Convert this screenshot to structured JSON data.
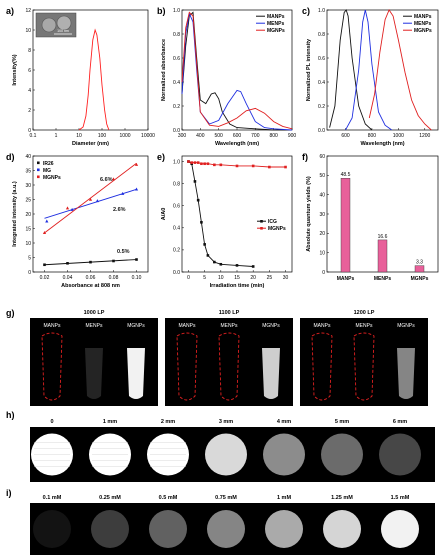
{
  "panels": {
    "a": {
      "label": "a)"
    },
    "b": {
      "label": "b)"
    },
    "c": {
      "label": "c)"
    },
    "d": {
      "label": "d)"
    },
    "e": {
      "label": "e)"
    },
    "f": {
      "label": "f)"
    },
    "g": {
      "label": "g)"
    },
    "h": {
      "label": "h)"
    },
    "i": {
      "label": "i)"
    }
  },
  "inset_scale": "100 nm",
  "chart_data": [
    {
      "id": "a",
      "type": "line",
      "xlabel": "Diameter (nm)",
      "ylabel": "Intensity(%)",
      "xscale": "log",
      "xlim": [
        0.1,
        10000
      ],
      "ylim": [
        0,
        12
      ],
      "xticks": [
        "0.1",
        "1",
        "10",
        "100",
        "1000",
        "10000"
      ],
      "yticks": [
        "0",
        "2",
        "4",
        "6",
        "8",
        "10",
        "12"
      ],
      "series": [
        {
          "color": "#ff2020",
          "x": [
            10,
            15,
            20,
            25,
            30,
            40,
            50,
            60,
            80,
            100,
            130,
            160,
            200
          ],
          "y": [
            0,
            0.3,
            1.4,
            3.5,
            6.0,
            9.0,
            10.0,
            9.5,
            7.2,
            4.5,
            2.0,
            0.6,
            0
          ]
        }
      ]
    },
    {
      "id": "b",
      "type": "line",
      "xlabel": "Wavelength (nm)",
      "ylabel": "Normalized absorbance",
      "xlim": [
        300,
        900
      ],
      "ylim": [
        0,
        1.0
      ],
      "xticks": [
        "300",
        "400",
        "500",
        "600",
        "700",
        "800",
        "900"
      ],
      "yticks": [
        "0.0",
        "0.2",
        "0.4",
        "0.6",
        "0.8",
        "1.0"
      ],
      "legend": "top-right",
      "series": [
        {
          "name": "MANPs",
          "color": "#111111",
          "x": [
            300,
            320,
            340,
            360,
            380,
            400,
            430,
            460,
            480,
            500,
            520,
            560,
            600,
            700,
            800,
            900
          ],
          "y": [
            0.3,
            0.7,
            0.95,
            0.98,
            0.6,
            0.25,
            0.22,
            0.3,
            0.31,
            0.26,
            0.15,
            0.05,
            0.02,
            0.01,
            0.0,
            0.0
          ]
        },
        {
          "name": "MENPs",
          "color": "#1f2fe0",
          "x": [
            300,
            320,
            340,
            360,
            380,
            400,
            450,
            500,
            550,
            600,
            620,
            650,
            700,
            750,
            800,
            900
          ],
          "y": [
            0.3,
            0.8,
            0.97,
            0.9,
            0.5,
            0.15,
            0.05,
            0.08,
            0.22,
            0.33,
            0.32,
            0.22,
            0.07,
            0.02,
            0.01,
            0.0
          ]
        },
        {
          "name": "MGNPs",
          "color": "#e02020",
          "x": [
            300,
            320,
            340,
            360,
            380,
            400,
            450,
            500,
            550,
            600,
            650,
            700,
            750,
            800,
            850,
            900
          ],
          "y": [
            0.4,
            0.85,
            0.98,
            0.95,
            0.55,
            0.15,
            0.04,
            0.03,
            0.06,
            0.1,
            0.16,
            0.18,
            0.14,
            0.07,
            0.03,
            0.01
          ]
        }
      ]
    },
    {
      "id": "c",
      "type": "line",
      "xlabel": "Wavelength (nm)",
      "ylabel": "Normalized PL intensity",
      "xlim": [
        460,
        1300
      ],
      "ylim": [
        0,
        1.0
      ],
      "xticks": [
        "600",
        "800",
        "1000",
        "1200"
      ],
      "yticks": [
        "0.0",
        "0.2",
        "0.4",
        "0.6",
        "0.8",
        "1.0"
      ],
      "legend": "top-right",
      "series": [
        {
          "name": "MANPs",
          "color": "#111111",
          "x": [
            480,
            520,
            560,
            590,
            605,
            620,
            650,
            700,
            750,
            800
          ],
          "y": [
            0.02,
            0.2,
            0.75,
            0.98,
            1.0,
            0.95,
            0.6,
            0.2,
            0.05,
            0.0
          ]
        },
        {
          "name": "MENPs",
          "color": "#1f2fe0",
          "x": [
            600,
            650,
            700,
            730,
            750,
            770,
            800,
            850,
            900,
            950
          ],
          "y": [
            0.0,
            0.1,
            0.5,
            0.9,
            1.0,
            0.9,
            0.55,
            0.15,
            0.04,
            0.0
          ]
        },
        {
          "name": "MGNPs",
          "color": "#e02020",
          "x": [
            780,
            820,
            860,
            900,
            930,
            960,
            1000,
            1050,
            1100,
            1150,
            1200,
            1250
          ],
          "y": [
            0.1,
            0.3,
            0.65,
            0.92,
            1.0,
            0.95,
            0.75,
            0.48,
            0.25,
            0.12,
            0.05,
            0.0
          ]
        }
      ]
    },
    {
      "id": "d",
      "type": "scatter",
      "xlabel": "Absorbance at 808 nm",
      "ylabel": "Integrated intensity (a.u.)",
      "xlim": [
        0.01,
        0.11
      ],
      "ylim": [
        0,
        40
      ],
      "xticks": [
        "0.02",
        "0.04",
        "0.06",
        "0.08",
        "0.10"
      ],
      "yticks": [
        "0",
        "5",
        "10",
        "15",
        "20",
        "25",
        "30",
        "35",
        "40"
      ],
      "legend": "top-left",
      "annotations": [
        "6.6%",
        "2.6%",
        "0.5%"
      ],
      "series": [
        {
          "name": "IR26",
          "color": "#111111",
          "x": [
            0.02,
            0.04,
            0.06,
            0.08,
            0.1
          ],
          "y": [
            2.5,
            3.0,
            3.4,
            3.8,
            4.3
          ],
          "fit": [
            [
              0.02,
              2.5
            ],
            [
              0.1,
              4.3
            ]
          ]
        },
        {
          "name": "MG",
          "color": "#1f2fe0",
          "x": [
            0.022,
            0.044,
            0.066,
            0.088,
            0.1
          ],
          "y": [
            17.5,
            21.5,
            24.5,
            27.0,
            28.5
          ],
          "fit": [
            [
              0.02,
              18.5
            ],
            [
              0.1,
              28.5
            ]
          ]
        },
        {
          "name": "MGNPs",
          "color": "#e02020",
          "x": [
            0.02,
            0.04,
            0.06,
            0.08,
            0.1
          ],
          "y": [
            13.5,
            22.0,
            25.0,
            32.0,
            37.0
          ],
          "fit": [
            [
              0.02,
              13.5
            ],
            [
              0.1,
              37.5
            ]
          ]
        }
      ]
    },
    {
      "id": "e",
      "type": "line",
      "xlabel": "Irradiation time (min)",
      "ylabel": "A/A0",
      "xlim": [
        -2,
        32
      ],
      "ylim": [
        0,
        1.05
      ],
      "xticks": [
        "0",
        "5",
        "10",
        "15",
        "20",
        "25",
        "30"
      ],
      "yticks": [
        "0.0",
        "0.2",
        "0.4",
        "0.6",
        "0.8",
        "1.0"
      ],
      "legend": "center-right",
      "series": [
        {
          "name": "ICG",
          "color": "#111111",
          "x": [
            0,
            1,
            2,
            3,
            4,
            5,
            6,
            8,
            10,
            15,
            20
          ],
          "y": [
            1.0,
            0.98,
            0.82,
            0.65,
            0.45,
            0.25,
            0.15,
            0.09,
            0.07,
            0.06,
            0.05
          ]
        },
        {
          "name": "MGNPs",
          "color": "#e02020",
          "x": [
            0,
            1,
            2,
            3,
            4,
            5,
            6,
            8,
            10,
            15,
            20,
            25,
            30
          ],
          "y": [
            1.0,
            0.99,
            0.99,
            0.99,
            0.98,
            0.98,
            0.98,
            0.97,
            0.97,
            0.96,
            0.96,
            0.95,
            0.95
          ]
        }
      ]
    },
    {
      "id": "f",
      "type": "bar",
      "ylabel": "Absolute quantum yields (%)",
      "ylim": [
        0,
        60
      ],
      "yticks": [
        "0",
        "10",
        "20",
        "30",
        "40",
        "50",
        "60"
      ],
      "categories": [
        "MANPs",
        "MENPs",
        "MGNPs"
      ],
      "values": [
        48.5,
        16.6,
        3.3
      ],
      "value_labels": [
        "48.5",
        "16.6",
        "3.3"
      ],
      "color": "#e8609a"
    }
  ],
  "imaging_g": {
    "panels": [
      {
        "title": "1000 LP",
        "samples": [
          "MANPs",
          "MENPs",
          "MGNPs"
        ]
      },
      {
        "title": "1100 LP",
        "samples": [
          "MANPs",
          "MENPs",
          "MGNPs"
        ]
      },
      {
        "title": "1200 LP",
        "samples": [
          "MANPs",
          "MENPs",
          "MGNPs"
        ]
      }
    ]
  },
  "imaging_h": {
    "depths": [
      "0",
      "1 mm",
      "2 mm",
      "3 mm",
      "4 mm",
      "5 mm",
      "6 mm"
    ],
    "brightness": [
      1.0,
      1.0,
      1.0,
      0.85,
      0.55,
      0.42,
      0.28
    ]
  },
  "imaging_i": {
    "concentrations": [
      "0.1 mM",
      "0.25 mM",
      "0.5 mM",
      "0.75 mM",
      "1 mM",
      "1.25 mM",
      "1.5 mM"
    ],
    "brightness": [
      0.08,
      0.25,
      0.4,
      0.55,
      0.7,
      0.88,
      1.0
    ]
  }
}
